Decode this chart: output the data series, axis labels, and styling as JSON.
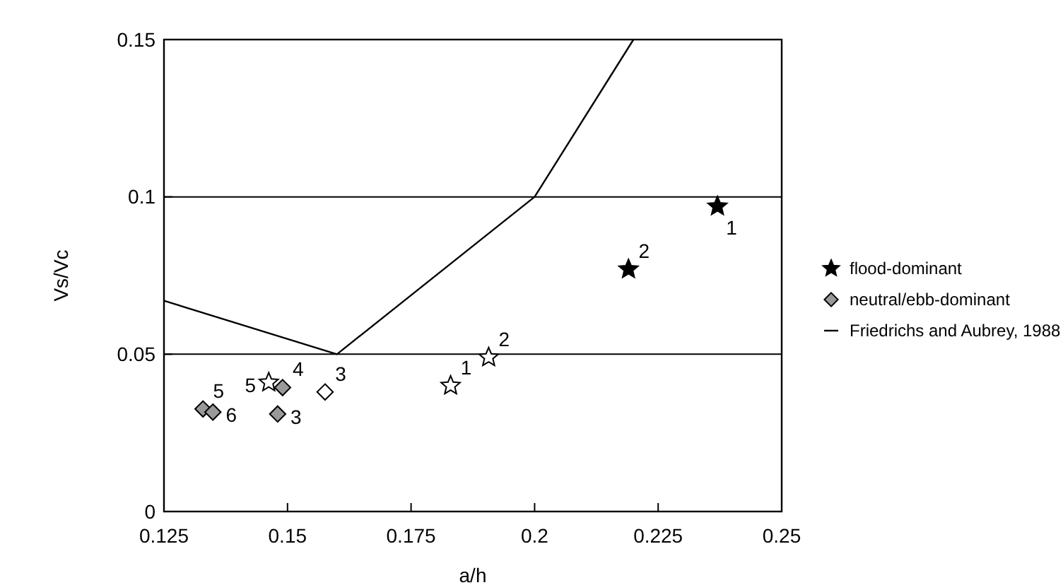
{
  "chart_data": {
    "type": "scatter",
    "xlabel": "a/h",
    "ylabel": "Vs/Vc",
    "xlim": [
      0.125,
      0.25
    ],
    "xticks": [
      0.125,
      0.15,
      0.175,
      0.2,
      0.225,
      0.25
    ],
    "ylim": [
      0,
      0.15
    ],
    "yticks": [
      0,
      0.05,
      0.1,
      0.15
    ],
    "grid": false,
    "legend": "right",
    "series": [
      {
        "name": "flood-dominant",
        "color": "#000000",
        "marker": "star",
        "x": [
          0.237,
          0.219
        ],
        "values": [
          0.097,
          0.077
        ]
      },
      {
        "name": "neutral/ebb-dominant",
        "color": "#999999",
        "marker": "diamond",
        "x": [
          0.149,
          0.148,
          0.1329,
          0.1349
        ],
        "values": [
          0.0394,
          0.031,
          0.0326,
          0.0316
        ]
      },
      {
        "color": "#ffffff",
        "marker": "star",
        "x": [
          0.183,
          0.1907,
          0.1462
        ],
        "values": [
          0.04,
          0.049,
          0.041
        ]
      },
      {
        "color": "#ffffff",
        "marker": "diamond",
        "x": [
          0.1576
        ],
        "values": [
          0.038
        ]
      },
      {
        "name": "Friedrichs and Aubrey, 1988",
        "type": "line",
        "color": "#000000",
        "marker": "none",
        "x": [
          0.125,
          0.16,
          0.2,
          0.22
        ],
        "values": [
          0.067,
          0.05,
          0.1,
          0.15
        ]
      }
    ],
    "ref_lines": [
      {
        "axis": "y",
        "value": 0.05,
        "color": "#000000"
      },
      {
        "axis": "y",
        "value": 0.1,
        "color": "#000000"
      }
    ],
    "annotations": [
      {
        "text": "1",
        "x": 0.237,
        "y": 0.097
      },
      {
        "text": "2",
        "x": 0.219,
        "y": 0.077
      },
      {
        "text": "2",
        "x": 0.1907,
        "y": 0.049
      },
      {
        "text": "1",
        "x": 0.183,
        "y": 0.04
      },
      {
        "text": "3",
        "x": 0.1576,
        "y": 0.038
      },
      {
        "text": "4",
        "x": 0.149,
        "y": 0.0394
      },
      {
        "text": "5",
        "x": 0.1462,
        "y": 0.041
      },
      {
        "text": "5",
        "x": 0.1329,
        "y": 0.0326
      },
      {
        "text": "3",
        "x": 0.148,
        "y": 0.031
      },
      {
        "text": "6",
        "x": 0.1349,
        "y": 0.0316
      }
    ]
  }
}
